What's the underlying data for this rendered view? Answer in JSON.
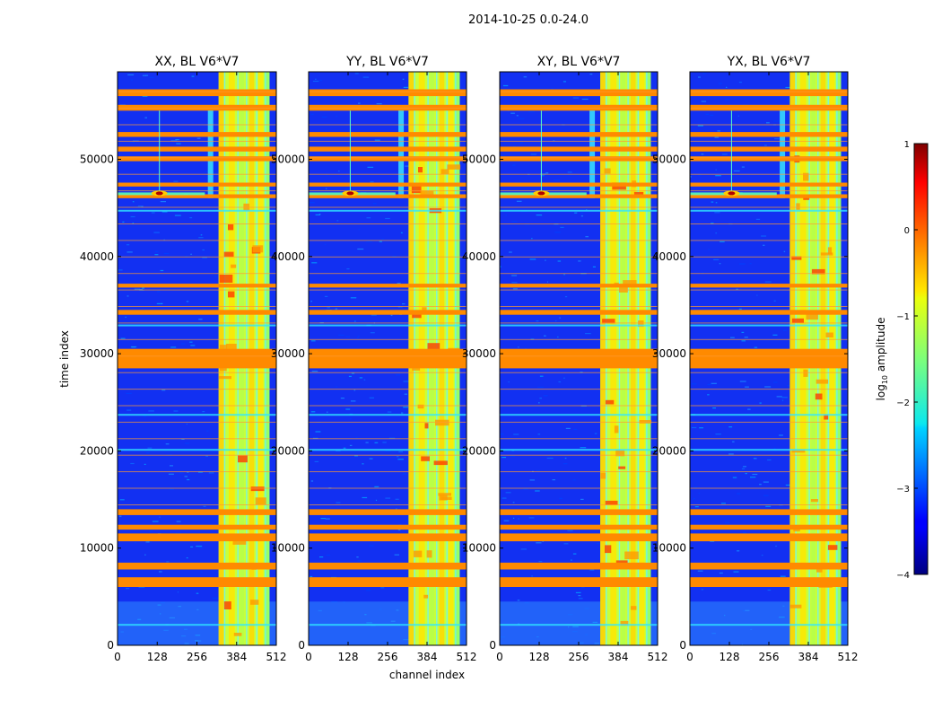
{
  "chart_data": {
    "type": "heatmap",
    "title": "2014-10-25 0.0-24.0",
    "xlabel": "channel index",
    "ylabel": "time index",
    "xlim": [
      0,
      512
    ],
    "ylim": [
      0,
      59000
    ],
    "x_ticks": [
      0,
      128,
      256,
      384,
      512
    ],
    "y_ticks": [
      0,
      10000,
      20000,
      30000,
      40000,
      50000
    ],
    "panels": [
      {
        "title": "XX, BL V6*V7",
        "hot_spot": {
          "channel": 135,
          "time": 46500
        },
        "band_channels": [
          326,
          490
        ]
      },
      {
        "title": "YY, BL V6*V7",
        "hot_spot": {
          "channel": 135,
          "time": 46500
        },
        "band_channels": [
          324,
          490
        ]
      },
      {
        "title": "XY, BL V6*V7",
        "hot_spot": {
          "channel": 135,
          "time": 46500
        },
        "band_channels": [
          326,
          490
        ]
      },
      {
        "title": "YX, BL V6*V7",
        "hot_spot": {
          "channel": 135,
          "time": 46500
        },
        "band_channels": [
          324,
          490
        ]
      }
    ],
    "flagged_time_bands": [
      [
        6000,
        7000
      ],
      [
        7800,
        8500
      ],
      [
        10700,
        11500
      ],
      [
        11900,
        12400
      ],
      [
        13400,
        14000
      ],
      [
        28500,
        30500
      ],
      [
        34000,
        34500
      ],
      [
        36800,
        37200
      ],
      [
        46000,
        46400
      ],
      [
        47200,
        47600
      ],
      [
        49800,
        50300
      ],
      [
        50800,
        51300
      ],
      [
        52300,
        52800
      ],
      [
        55000,
        55600
      ],
      [
        56500,
        57200
      ]
    ],
    "colorbar": {
      "label": "log10 amplitude",
      "range": [
        -4,
        1
      ],
      "ticks": [
        -4,
        -3,
        -2,
        -1,
        0,
        1
      ],
      "tick_labels": [
        "−4",
        "−3",
        "−2",
        "−1",
        "0",
        "1"
      ]
    }
  }
}
